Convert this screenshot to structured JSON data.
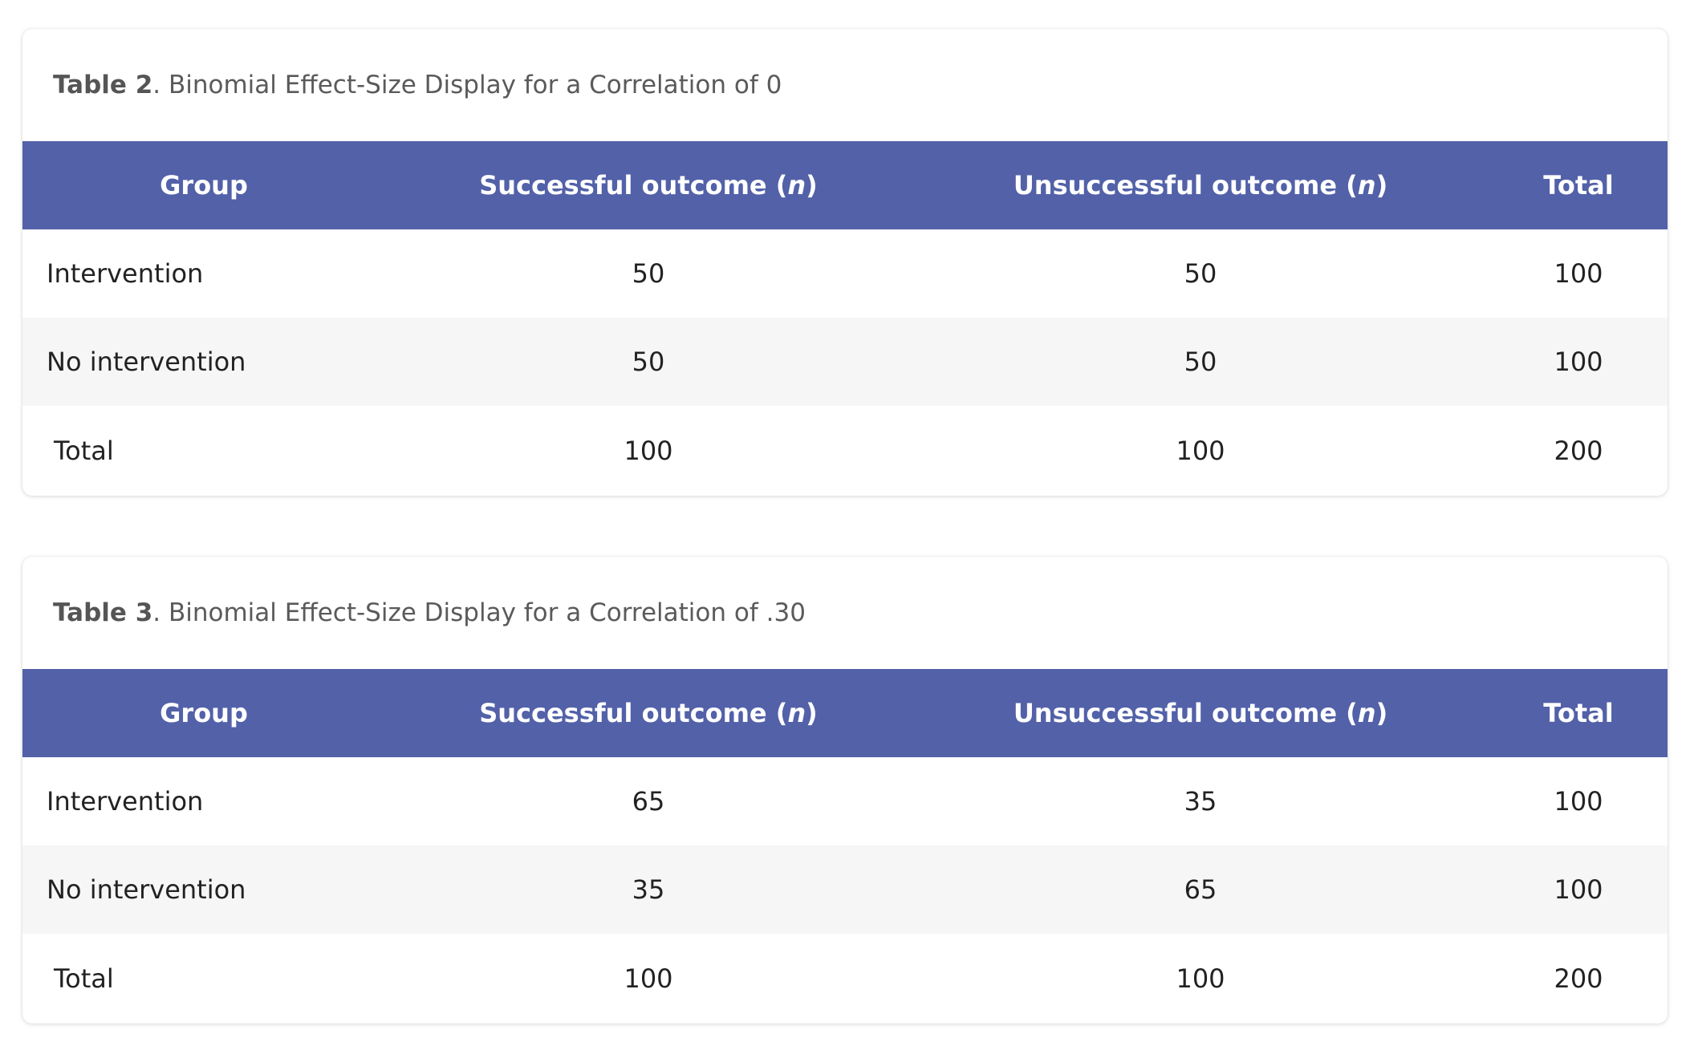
{
  "tables": [
    {
      "caption_label": "Table 2",
      "caption_text": ". Binomial Effect-Size Display for a Correlation of 0",
      "headers": {
        "group": "Group",
        "successful_prefix": "Successful outcome (",
        "successful_var": "n",
        "successful_suffix": ")",
        "unsuccessful_prefix": "Unsuccessful outcome (",
        "unsuccessful_var": "n",
        "unsuccessful_suffix": ")",
        "total": "Total"
      },
      "rows": [
        {
          "group": "Intervention",
          "successful": "50",
          "unsuccessful": "50",
          "total": "100"
        },
        {
          "group": "No intervention",
          "successful": "50",
          "unsuccessful": "50",
          "total": "100"
        },
        {
          "group": "Total",
          "successful": "100",
          "unsuccessful": "100",
          "total": "200"
        }
      ]
    },
    {
      "caption_label": "Table 3",
      "caption_text": ". Binomial Effect-Size Display for a Correlation of .30",
      "headers": {
        "group": "Group",
        "successful_prefix": "Successful outcome (",
        "successful_var": "n",
        "successful_suffix": ")",
        "unsuccessful_prefix": "Unsuccessful outcome (",
        "unsuccessful_var": "n",
        "unsuccessful_suffix": ")",
        "total": "Total"
      },
      "rows": [
        {
          "group": "Intervention",
          "successful": "65",
          "unsuccessful": "35",
          "total": "100"
        },
        {
          "group": "No intervention",
          "successful": "35",
          "unsuccessful": "65",
          "total": "100"
        },
        {
          "group": "Total",
          "successful": "100",
          "unsuccessful": "100",
          "total": "200"
        }
      ]
    }
  ],
  "colors": {
    "header_bg": "#5261a8",
    "header_text": "#ffffff",
    "shaded_row": "#f6f6f6",
    "caption_text": "#5a5a5a"
  }
}
